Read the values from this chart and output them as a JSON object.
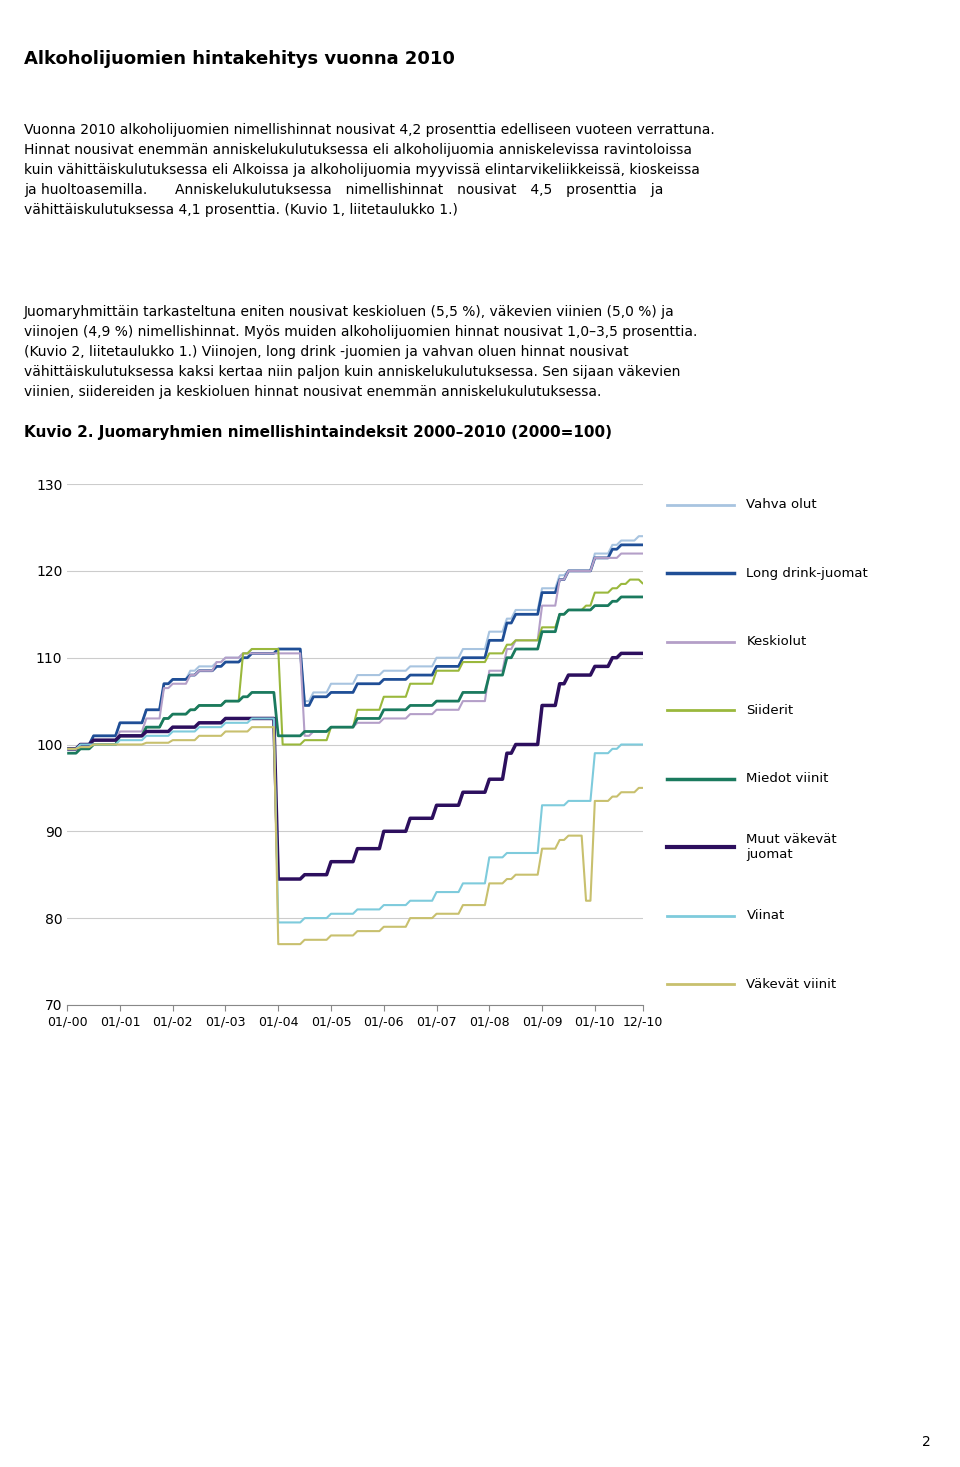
{
  "title_main": "Alkoholijuomien hintakehitys vuonna 2010",
  "para1": "Vuonna 2010 alkoholijuomien nimellishinnat nousivat 4,2 prosenttia edelliseen vuoteen verrattuna. Hinnat nousivat enemmän anniskelukulutuksessa eli alkoholijuomia anniskelevissa ravintoloissa kuin vähittäiskulutuksessa eli Alkoissa ja alkoholijuomia myyvissä elintarvikeliikkeissä, kioskeissa ja huoltoasemilla. Anniskelukulutuksessa nimellishinnat nousivat 4,5 prosenttia ja vähittäiskulutuksessa 4,1 prosenttia. (Kuvio 1, liitetaulukko 1.)",
  "para2": "Juomaryhmittäin tarkasteltuna eniten nousivat keskioluen (5,5 %), väkevien viinien (5,0 %) ja viinojen (4,9 %) nimellishinnat. Myös muiden alkoholijuomien hinnat nousivat 1,0–3,5 prosenttia. (Kuvio 2, liitetaulukko 1.) Viinojen, long drink -juomien ja vahvan oluen hinnat nousivat vähittäiskulutuksessa kaksi kertaa niin paljon kuin anniskelukulutuksessa. Sen sijaan väkevien viinien, siidereiden ja keskioluen hinnat nousivat enemmän anniskelukulutuksessa.",
  "chart_title": "Kuvio 2. Juomaryhmien nimellishintaindeksit 2000–2010 (2000=100)",
  "ylim": [
    70,
    130
  ],
  "yticks": [
    70,
    80,
    90,
    100,
    110,
    120,
    130
  ],
  "xtick_labels": [
    "01/-00",
    "01/-01",
    "01/-02",
    "01/-03",
    "01/-04",
    "01/-05",
    "01/-06",
    "01/-07",
    "01/-08",
    "01/-09",
    "01/-10",
    "12/-10"
  ],
  "legend_entries": [
    {
      "label": "Vahva olut",
      "color": "#a8c4e0",
      "lw": 1.5
    },
    {
      "label": "Long drink-juomat",
      "color": "#1f4e96",
      "lw": 2.0
    },
    {
      "label": "Keskiolut",
      "color": "#b49fc8",
      "lw": 1.5
    },
    {
      "label": "Siiderit",
      "color": "#9ab83c",
      "lw": 1.5
    },
    {
      "label": "Miedot viinit",
      "color": "#1a7a5e",
      "lw": 2.0
    },
    {
      "label": "Muut väkevät\njuomat",
      "color": "#2d0f5e",
      "lw": 2.5
    },
    {
      "label": "Viinat",
      "color": "#7ecbdc",
      "lw": 1.5
    },
    {
      "label": "Väkevät viinit",
      "color": "#c8c06e",
      "lw": 1.5
    }
  ]
}
